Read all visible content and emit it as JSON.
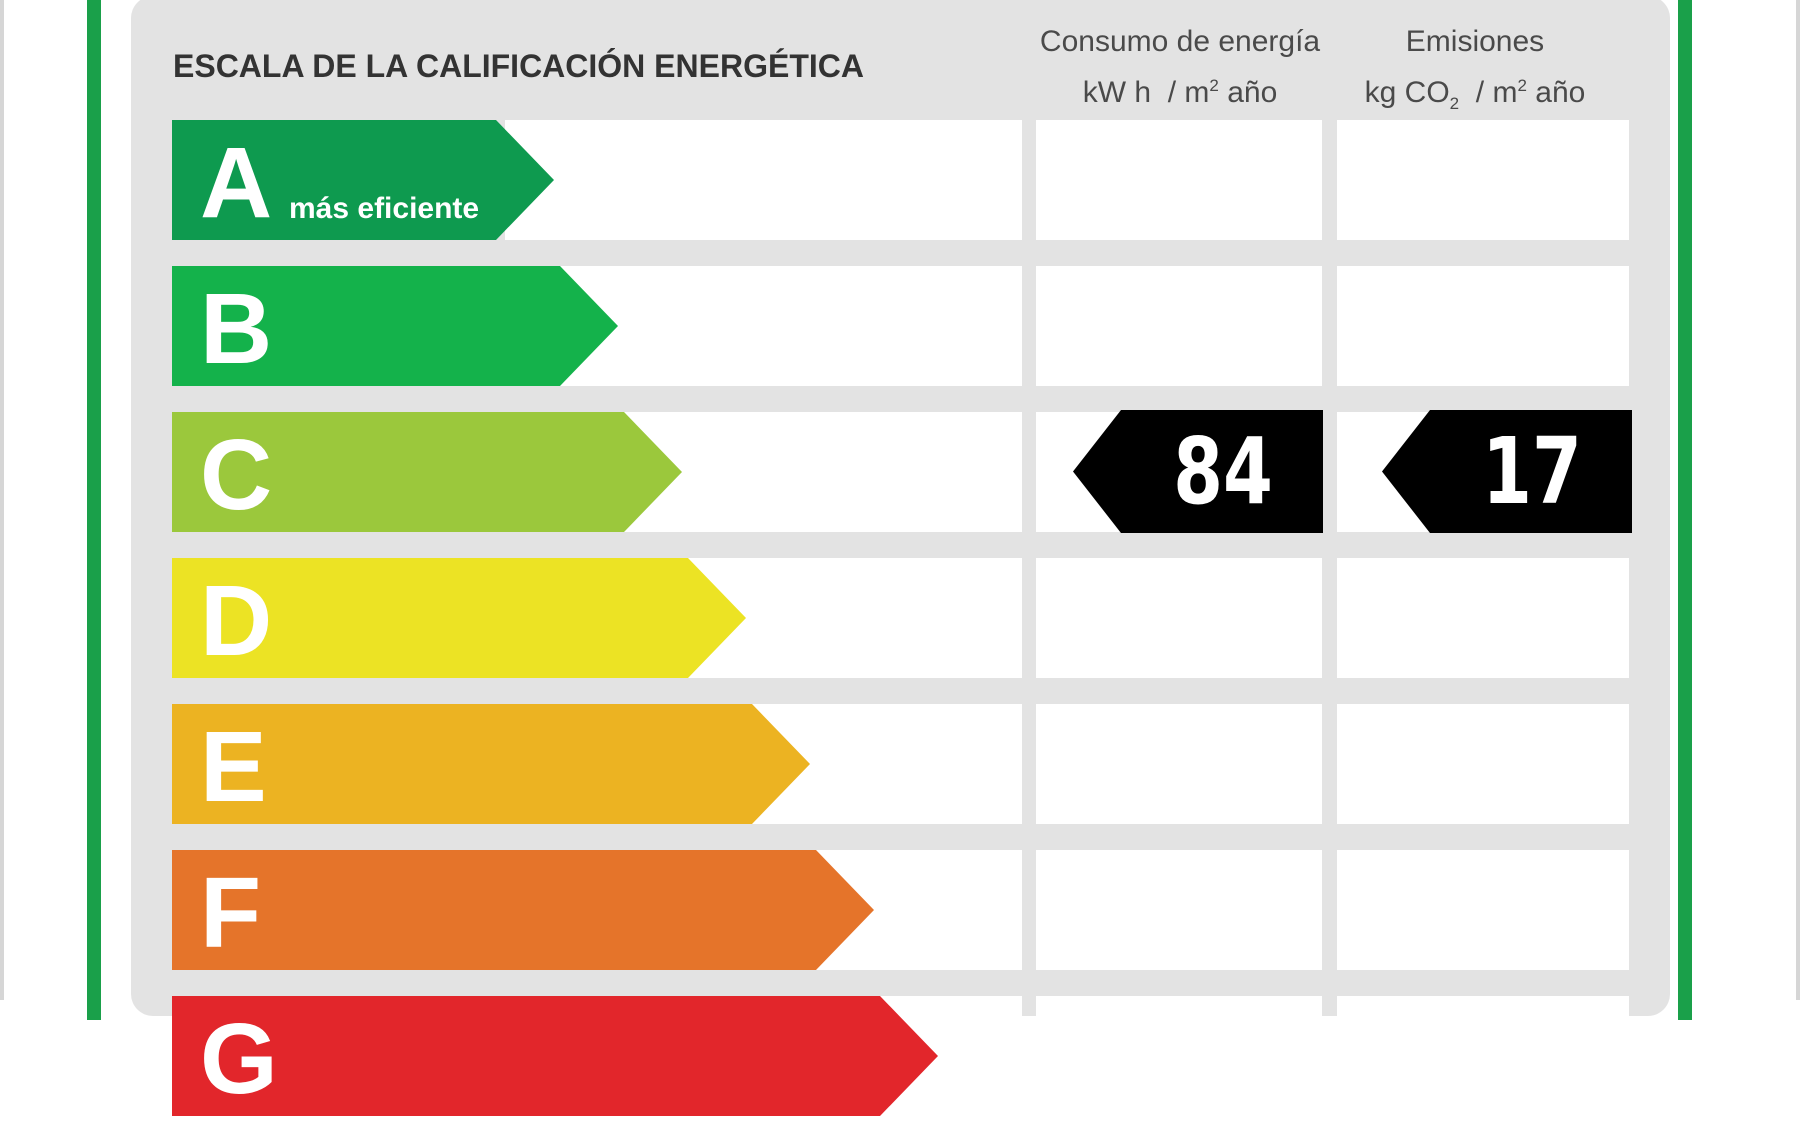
{
  "scale": {
    "title": "ESCALA DE LA CALIFICACIÓN ENERGÉTICA",
    "top_class_note": "más eficiente",
    "classes": [
      {
        "letter": "A",
        "color": "#0e9a4f"
      },
      {
        "letter": "B",
        "color": "#14b24b"
      },
      {
        "letter": "C",
        "color": "#9bc83c"
      },
      {
        "letter": "D",
        "color": "#ece324"
      },
      {
        "letter": "E",
        "color": "#ecb322"
      },
      {
        "letter": "F",
        "color": "#e5742a"
      },
      {
        "letter": "G",
        "color": "#e2262b"
      }
    ]
  },
  "columns": {
    "energy": {
      "line1": "Consumo de energía",
      "line2_prefix": "kW h  / m",
      "line2_sup": "2",
      "line2_suffix": " año"
    },
    "emissions": {
      "line1": "Emisiones",
      "line2_prefix": "kg CO",
      "line2_sub": "2",
      "line2_mid": "  / m",
      "line2_sup": "2",
      "line2_suffix": " año"
    }
  },
  "rating": {
    "class": "C",
    "energy_value": "84",
    "emissions_value": "17",
    "tag_color": "#000000"
  }
}
